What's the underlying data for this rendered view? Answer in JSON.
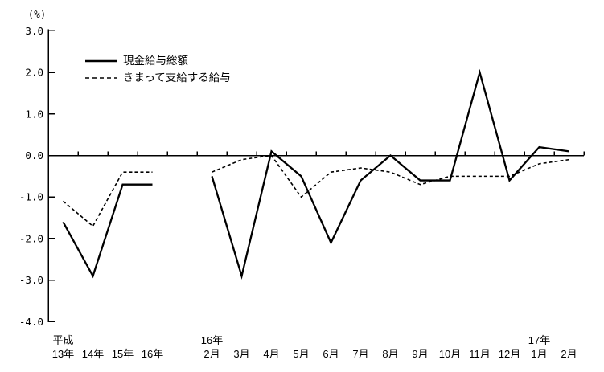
{
  "window": {
    "background": "#ffffff",
    "foreground": "#000000"
  },
  "legend": {
    "items": [
      {
        "label": "現金給与総額",
        "line_style": "solid"
      },
      {
        "label": "きまって支給する給与",
        "line_style": "dashed"
      }
    ]
  },
  "chart_data": {
    "type": "line",
    "title": "",
    "ylabel": "(%)",
    "ylim": [
      -4.0,
      3.0
    ],
    "y_tick_step": 1.0,
    "y_tick_labels": [
      "3.0",
      "2.0",
      "1.0",
      "0.0",
      "-1.0",
      "-2.0",
      "-3.0",
      "-4.0"
    ],
    "x_tick_labels": [
      "13年",
      "14年",
      "15年",
      "16年",
      "2月",
      "3月",
      "4月",
      "5月",
      "6月",
      "7月",
      "8月",
      "9月",
      "10月",
      "11月",
      "12月",
      "1月",
      "2月"
    ],
    "x_group_labels": [
      {
        "text": "平成",
        "index": 0
      },
      {
        "text": "16年",
        "index": 4
      },
      {
        "text": "17年",
        "index": 15
      }
    ],
    "gap_after_index": 3,
    "grid": false,
    "legend_position": "upper-left-inside",
    "line_color": "#000000",
    "series": [
      {
        "name": "現金給与総額",
        "line_style": "solid",
        "color": "#000000",
        "values": [
          -1.6,
          -2.9,
          -0.7,
          -0.7,
          -0.5,
          -2.9,
          0.1,
          -0.5,
          -2.1,
          -0.6,
          0.0,
          -0.6,
          -0.6,
          2.0,
          -0.6,
          0.2,
          0.1
        ]
      },
      {
        "name": "きまって支給する給与",
        "line_style": "dashed",
        "color": "#000000",
        "values": [
          -1.1,
          -1.7,
          -0.4,
          -0.4,
          -0.4,
          -0.1,
          0.0,
          -1.0,
          -0.4,
          -0.3,
          -0.4,
          -0.7,
          -0.5,
          -0.5,
          -0.5,
          -0.2,
          -0.1
        ]
      }
    ]
  }
}
